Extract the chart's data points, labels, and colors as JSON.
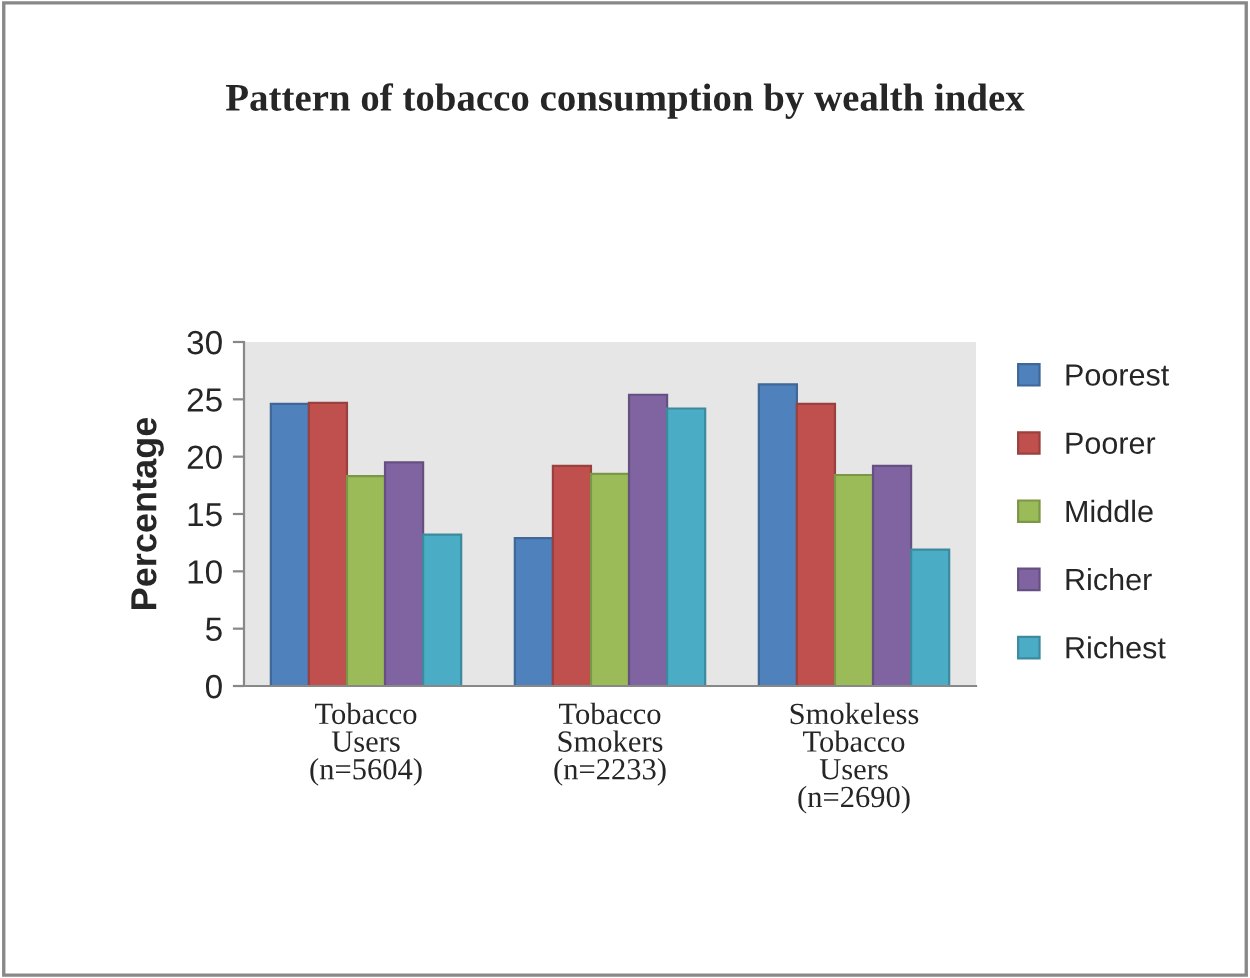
{
  "chart_data": {
    "type": "bar",
    "title": "Pattern of tobacco consumption by wealth index",
    "ylabel": "Percentage",
    "categories": [
      "Tobacco\nUsers\n(n=5604)",
      "Tobacco\nSmokers\n(n=2233)",
      "Smokeless\nTobacco\nUsers\n(n=2690)"
    ],
    "series": [
      {
        "name": "Poorest",
        "color": "#4f81bd",
        "values": [
          24.6,
          12.9,
          26.3
        ]
      },
      {
        "name": "Poorer",
        "color": "#c0504d",
        "values": [
          24.7,
          19.2,
          24.6
        ]
      },
      {
        "name": "Middle",
        "color": "#9bbb59",
        "values": [
          18.3,
          18.5,
          18.4
        ]
      },
      {
        "name": "Richer",
        "color": "#8064a2",
        "values": [
          19.5,
          25.4,
          19.2
        ]
      },
      {
        "name": "Richest",
        "color": "#4bacc6",
        "values": [
          13.2,
          24.2,
          11.9
        ]
      }
    ],
    "ylim": [
      0,
      30
    ],
    "yticks": [
      0,
      5,
      10,
      15,
      20,
      25,
      30
    ],
    "grid": false,
    "legend": "right"
  }
}
